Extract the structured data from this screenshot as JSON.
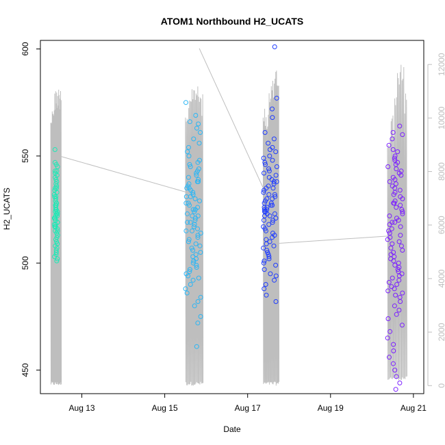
{
  "chart_data": {
    "type": "scatter",
    "title": "ATOM1 Northbound H2_UCATS",
    "xlabel": "Date",
    "ylabel": "H2_UCATS",
    "x_ticks": [
      "Aug 13",
      "Aug 15",
      "Aug 17",
      "Aug 19",
      "Aug 21"
    ],
    "y_ticks": [
      450,
      500,
      550,
      600
    ],
    "y2_ticks": [
      0,
      2000,
      4000,
      6000,
      8000,
      10000,
      12000
    ],
    "x_range": [
      "Aug 12 00:00",
      "Aug 21 06:00"
    ],
    "ylim": [
      439,
      604
    ],
    "y2lim": [
      -300,
      12900
    ],
    "y2_axis_color": "#bebebe",
    "grid": false,
    "legend": "none",
    "series": [
      {
        "color": "#1de9b6",
        "x_range": [
          "Aug 12 08:00",
          "Aug 12 10:00"
        ],
        "y_values": [
          553,
          547,
          546,
          545,
          543,
          543,
          542,
          541,
          540,
          539,
          538,
          537,
          536,
          535,
          535,
          534,
          533,
          532,
          531,
          531,
          530,
          529,
          528,
          528,
          527,
          527,
          526,
          525,
          525,
          524,
          524,
          523,
          523,
          522,
          522,
          521,
          521,
          520,
          520,
          519,
          519,
          518,
          518,
          517,
          517,
          516,
          515,
          515,
          514,
          513,
          512,
          511,
          510,
          509,
          508,
          507,
          506,
          505,
          504,
          503,
          502,
          501
        ]
      },
      {
        "color": "#29b6f6",
        "x_range": [
          "Aug 15 12:00",
          "Aug 15 21:00"
        ],
        "y_values": [
          575,
          569,
          566,
          565,
          563,
          561,
          558,
          556,
          554,
          552,
          550,
          548,
          547,
          546,
          545,
          544,
          543,
          542,
          541,
          540,
          539,
          538,
          538,
          537,
          536,
          535,
          535,
          534,
          533,
          532,
          531,
          531,
          530,
          529,
          528,
          528,
          527,
          526,
          525,
          525,
          524,
          523,
          522,
          522,
          521,
          520,
          519,
          519,
          518,
          517,
          516,
          515,
          515,
          514,
          513,
          512,
          511,
          510,
          509,
          508,
          507,
          506,
          505,
          504,
          503,
          502,
          501,
          500,
          499,
          498,
          497,
          496,
          495,
          494,
          493,
          492,
          490,
          488,
          486,
          484,
          482,
          480,
          475,
          472,
          461
        ]
      },
      {
        "color": "#1e3cff",
        "x_range": [
          "Aug 17 09:00",
          "Aug 17 17:00"
        ],
        "y_values": [
          601,
          577,
          572,
          568,
          561,
          558,
          556,
          554,
          553,
          552,
          550,
          549,
          548,
          547,
          546,
          545,
          544,
          543,
          542,
          541,
          540,
          539,
          538,
          538,
          537,
          536,
          535,
          535,
          534,
          533,
          532,
          532,
          531,
          530,
          530,
          529,
          528,
          528,
          527,
          527,
          526,
          526,
          525,
          525,
          524,
          524,
          523,
          523,
          522,
          522,
          521,
          520,
          520,
          519,
          518,
          517,
          516,
          515,
          514,
          513,
          512,
          511,
          510,
          509,
          508,
          507,
          506,
          505,
          504,
          503,
          502,
          501,
          500,
          499,
          497,
          495,
          494,
          492,
          490,
          488,
          485,
          482
        ]
      },
      {
        "color": "#7b1fff",
        "x_range": [
          "Aug 20 09:00",
          "Aug 20 18:00"
        ],
        "y_values": [
          564,
          561,
          560,
          558,
          555,
          553,
          552,
          550,
          549,
          548,
          547,
          546,
          545,
          544,
          543,
          542,
          541,
          540,
          539,
          538,
          537,
          536,
          535,
          534,
          533,
          532,
          531,
          530,
          529,
          528,
          528,
          527,
          526,
          525,
          524,
          523,
          522,
          521,
          520,
          519,
          519,
          518,
          517,
          516,
          515,
          514,
          513,
          512,
          511,
          510,
          509,
          508,
          507,
          506,
          505,
          504,
          503,
          502,
          501,
          500,
          499,
          498,
          497,
          496,
          495,
          494,
          493,
          492,
          491,
          490,
          489,
          488,
          487,
          486,
          485,
          484,
          482,
          480,
          478,
          476,
          474,
          471,
          468,
          465,
          462,
          459,
          456,
          453,
          450,
          447,
          444,
          441
        ]
      }
    ],
    "secondary_line": {
      "color": "#bebebe",
      "y_axis": "right",
      "bursts": [
        {
          "x_range": [
            "Aug 12 06:00",
            "Aug 12 12:00"
          ],
          "peaks": [
            10400,
            10800,
            11100,
            11200,
            11200,
            11400
          ],
          "low": 0
        },
        {
          "x_range": [
            "Aug 15 12:00",
            "Aug 15 22:00"
          ],
          "peaks": [
            10500,
            11000,
            11300,
            11400,
            11200,
            10900
          ],
          "low": 0
        },
        {
          "x_range": [
            "Aug 17 09:00",
            "Aug 17 18:00"
          ],
          "peaks": [
            10600,
            10200,
            11000,
            11400,
            12000,
            11800
          ],
          "low": 0
        },
        {
          "x_range": [
            "Aug 20 09:00",
            "Aug 20 20:00"
          ],
          "peaks": [
            9500,
            10200,
            11200,
            11800,
            12100,
            11000
          ],
          "low": 200
        }
      ],
      "connectors": [
        {
          "from": [
            "Aug 12 10:00",
            8600
          ],
          "to": [
            "Aug 15 14:00",
            7200
          ]
        },
        {
          "from": [
            "Aug 15 20:00",
            12600
          ],
          "to": [
            "Aug 17 11:00",
            7100
          ]
        },
        {
          "from": [
            "Aug 17 14:00",
            5300
          ],
          "to": [
            "Aug 20 12:00",
            5600
          ]
        }
      ]
    }
  }
}
